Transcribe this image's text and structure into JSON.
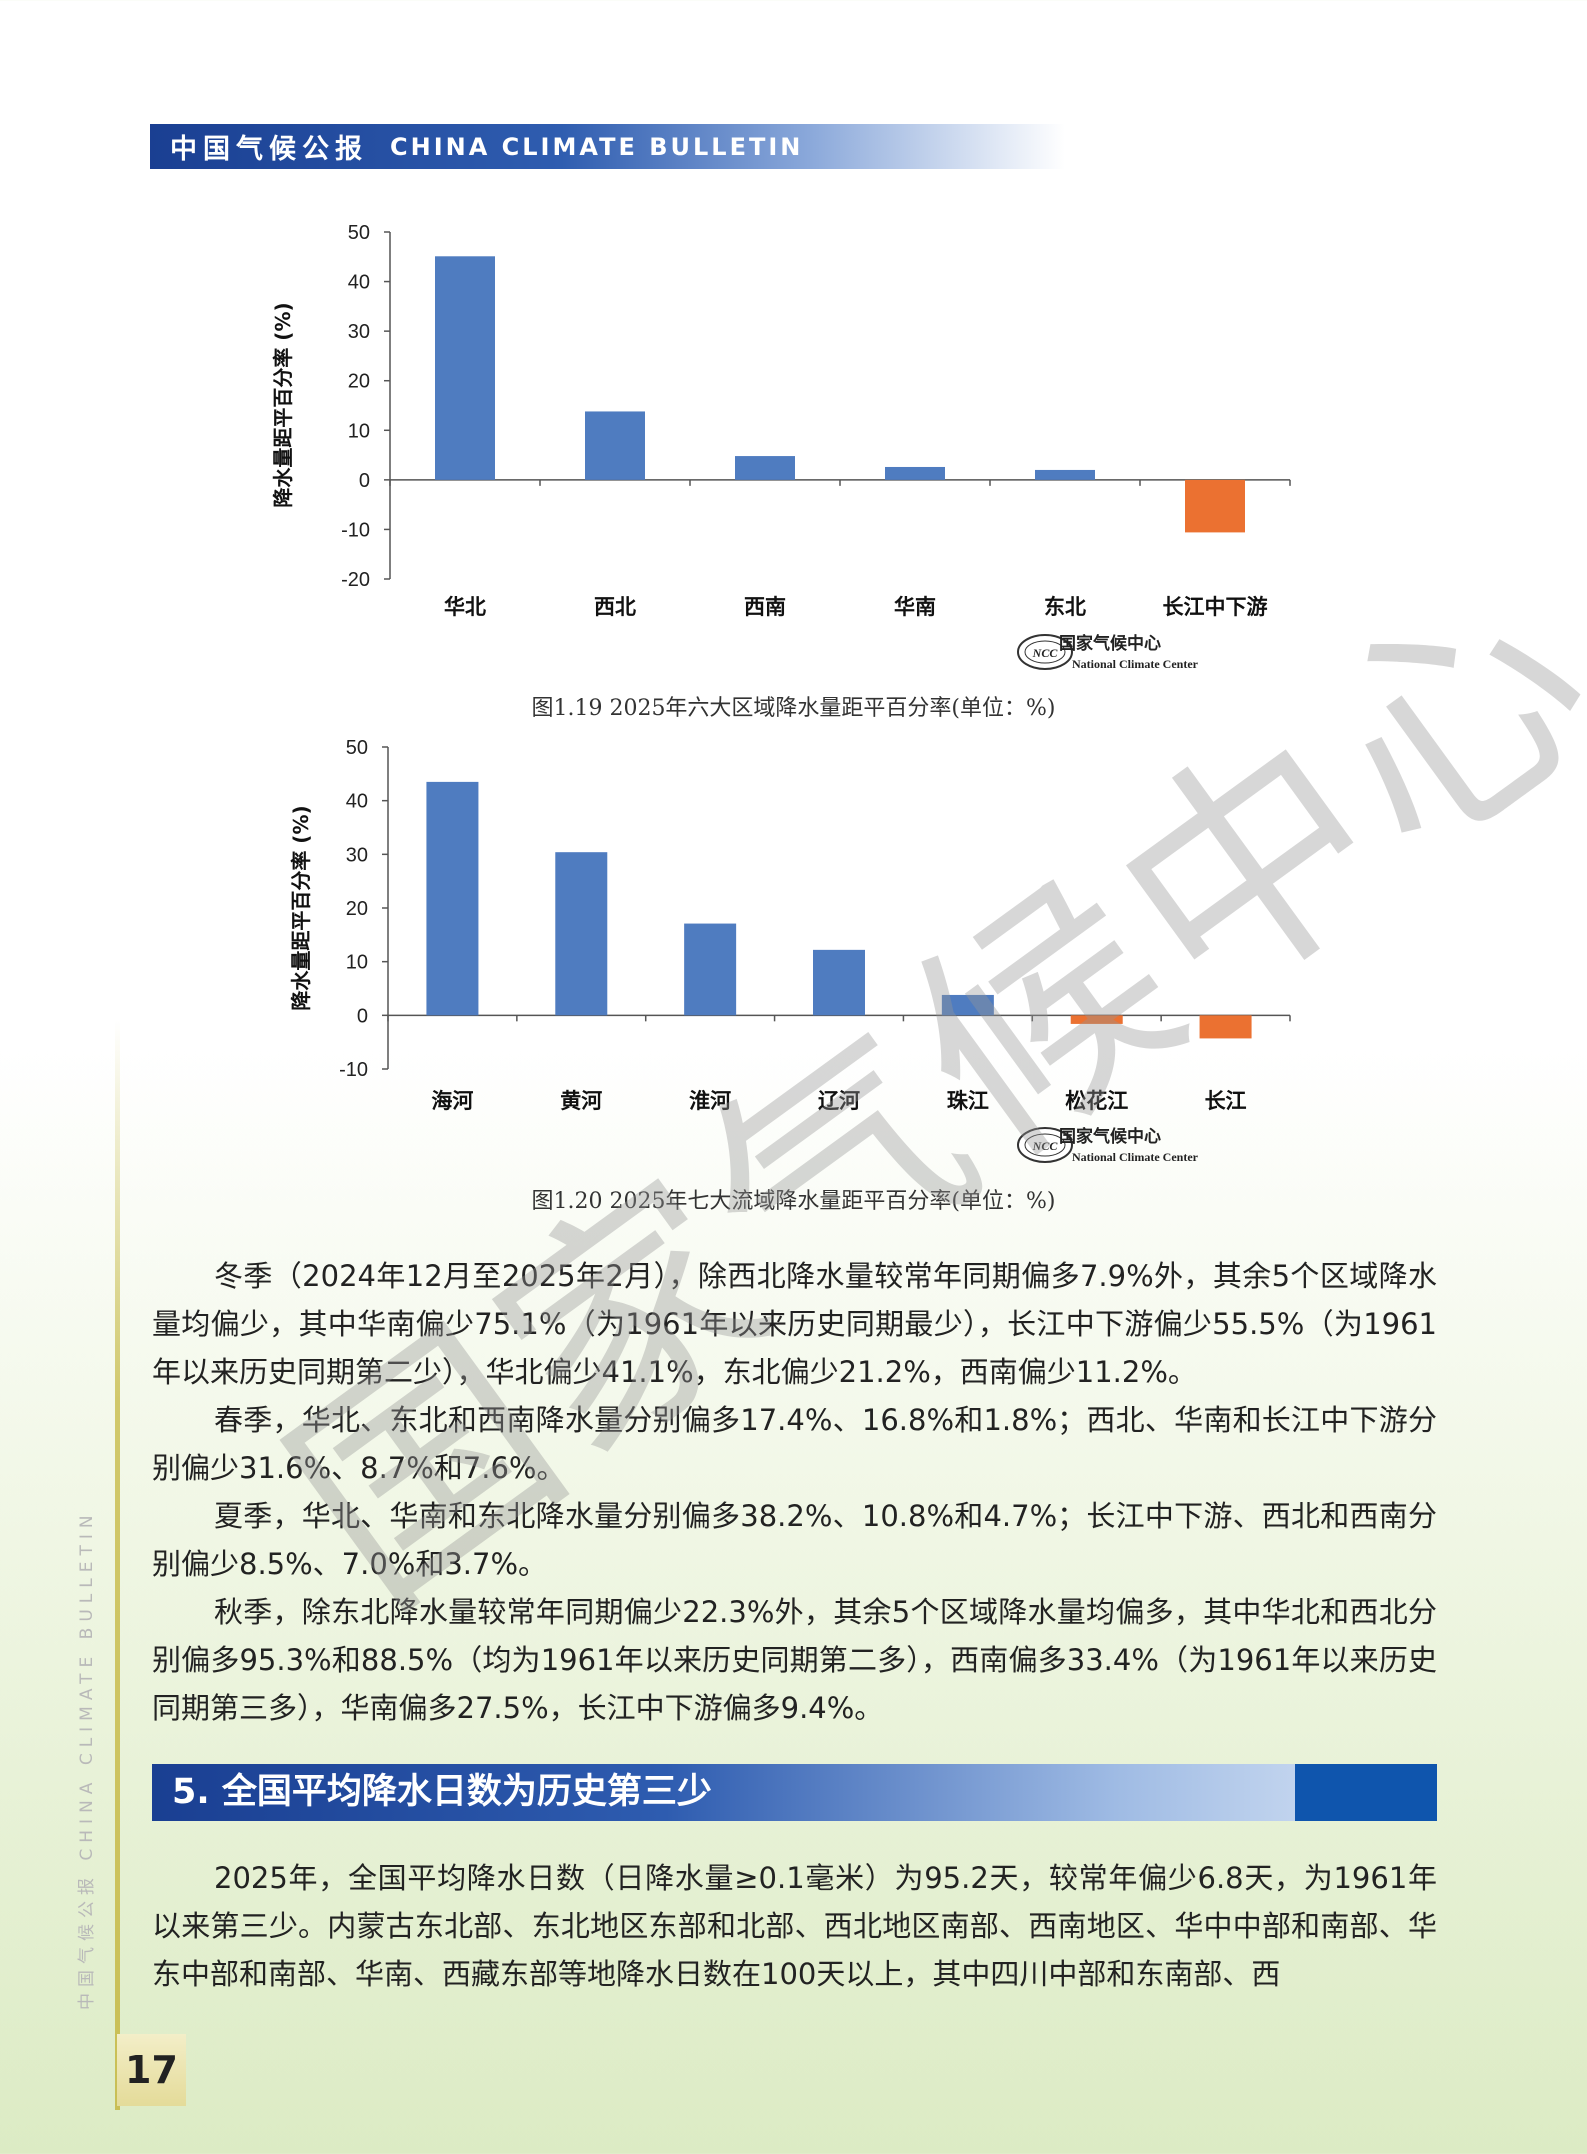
{
  "header": {
    "title_cn": "中国气候公报",
    "title_en": "CHINA CLIMATE BULLETIN"
  },
  "colors": {
    "positive": "#4f7cc0",
    "negative": "#eb7131",
    "header": "#1a3f92"
  },
  "logo": {
    "abbr": "NCC",
    "name_cn": "国家气候中心",
    "name_en": "National Climate Center"
  },
  "chart_data": [
    {
      "type": "bar",
      "caption": "图1.19  2025年六大区域降水量距平百分率(单位：%)",
      "ylabel": "降水量距平百分率 (%)",
      "categories": [
        "华北",
        "西北",
        "西南",
        "华南",
        "东北",
        "长江中下游"
      ],
      "values": [
        45.1,
        13.8,
        4.8,
        2.6,
        2.0,
        -10.6
      ],
      "ylim": [
        -20,
        50
      ],
      "yticks": [
        50,
        40,
        30,
        20,
        10,
        0,
        -10,
        -20
      ]
    },
    {
      "type": "bar",
      "caption": "图1.20  2025年七大流域降水量距平百分率(单位：%)",
      "ylabel": "降水量距平百分率 (%)",
      "categories": [
        "海河",
        "黄河",
        "淮河",
        "辽河",
        "珠江",
        "松花江",
        "长江"
      ],
      "values": [
        43.5,
        30.4,
        17.1,
        12.2,
        3.8,
        -1.6,
        -4.3
      ],
      "ylim": [
        -10,
        50
      ],
      "yticks": [
        50,
        40,
        30,
        20,
        10,
        0,
        -10
      ]
    }
  ],
  "paragraphs": [
    "冬季（2024年12月至2025年2月），除西北降水量较常年同期偏多7.9%外，其余5个区域降水量均偏少，其中华南偏少75.1%（为1961年以来历史同期最少），长江中下游偏少55.5%（为1961年以来历史同期第二少），华北偏少41.1%，东北偏少21.2%，西南偏少11.2%。",
    "春季，华北、东北和西南降水量分别偏多17.4%、16.8%和1.8%；西北、华南和长江中下游分别偏少31.6%、8.7%和7.6%。",
    "夏季，华北、华南和东北降水量分别偏多38.2%、10.8%和4.7%；长江中下游、西北和西南分别偏少8.5%、7.0%和3.7%。",
    "秋季，除东北降水量较常年同期偏少22.3%外，其余5个区域降水量均偏多，其中华北和西北分别偏多95.3%和88.5%（均为1961年以来历史同期第二多），西南偏多33.4%（为1961年以来历史同期第三多），华南偏多27.5%，长江中下游偏多9.4%。"
  ],
  "section": {
    "title": "5. 全国平均降水日数为历史第三少",
    "paragraph": "2025年，全国平均降水日数（日降水量≥0.1毫米）为95.2天，较常年偏少6.8天，为1961年以来第三少。内蒙古东北部、东北地区东部和北部、西北地区南部、西南地区、华中中部和南部、华东中部和南部、华南、西藏东部等地降水日数在100天以上，其中四川中部和东南部、西"
  },
  "sidebar": {
    "text": "中国气候公报  CHINA CLIMATE BULLETIN"
  },
  "page_number": "17",
  "watermark": "国家气候中心"
}
